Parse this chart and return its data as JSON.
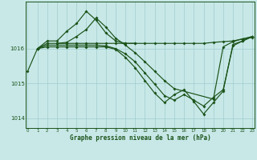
{
  "title": "Graphe pression niveau de la mer (hPa)",
  "bg_color": "#c8e8e8",
  "grid_color": "#a0cccc",
  "line_color": "#1a5218",
  "x_min": -0.2,
  "x_max": 23.2,
  "y_min": 1013.72,
  "y_max": 1017.35,
  "yticks": [
    1014,
    1015,
    1016
  ],
  "xticks": [
    0,
    1,
    2,
    3,
    4,
    5,
    6,
    7,
    8,
    9,
    10,
    11,
    12,
    13,
    14,
    15,
    16,
    17,
    18,
    19,
    20,
    21,
    22,
    23
  ],
  "series": [
    {
      "x": [
        0,
        1,
        2,
        3,
        4,
        5,
        6,
        7,
        8,
        9,
        10,
        11
      ],
      "y": [
        1015.35,
        1016.0,
        1016.22,
        1016.22,
        1016.5,
        1016.72,
        1017.07,
        1016.82,
        1016.45,
        1016.22,
        1016.15,
        1016.15
      ]
    },
    {
      "x": [
        3,
        4,
        5,
        6,
        7,
        8,
        9,
        10,
        11,
        12,
        13,
        14,
        15,
        16,
        17,
        18,
        19,
        20,
        21,
        22,
        23
      ],
      "y": [
        1016.15,
        1016.15,
        1016.15,
        1016.15,
        1016.15,
        1016.15,
        1016.15,
        1016.15,
        1016.15,
        1016.15,
        1016.15,
        1016.15,
        1016.15,
        1016.15,
        1016.15,
        1016.15,
        1016.18,
        1016.2,
        1016.22,
        1016.28,
        1016.32
      ]
    },
    {
      "x": [
        1,
        2,
        3,
        4,
        5,
        6,
        7,
        8,
        9,
        10,
        11,
        12,
        13,
        14,
        15,
        19,
        20,
        21,
        22,
        23
      ],
      "y": [
        1016.0,
        1016.15,
        1016.15,
        1016.18,
        1016.35,
        1016.55,
        1016.88,
        1016.62,
        1016.3,
        1016.1,
        1015.88,
        1015.62,
        1015.35,
        1015.08,
        1014.85,
        1014.55,
        1016.05,
        1016.2,
        1016.28,
        1016.35
      ]
    },
    {
      "x": [
        1,
        2,
        3,
        4,
        5,
        6,
        7,
        8,
        9,
        10,
        11,
        12,
        13,
        14,
        15,
        16,
        17,
        18,
        19,
        20,
        21,
        22,
        23
      ],
      "y": [
        1016.0,
        1016.1,
        1016.1,
        1016.1,
        1016.1,
        1016.1,
        1016.1,
        1016.08,
        1016.0,
        1015.85,
        1015.62,
        1015.3,
        1014.98,
        1014.65,
        1014.52,
        1014.68,
        1014.52,
        1014.35,
        1014.6,
        1014.82,
        1016.08,
        1016.22,
        1016.35
      ]
    },
    {
      "x": [
        1,
        2,
        3,
        4,
        5,
        6,
        7,
        8,
        9,
        10,
        11,
        12,
        13,
        14,
        15,
        16,
        17,
        18,
        19,
        20,
        21,
        22,
        23
      ],
      "y": [
        1016.0,
        1016.05,
        1016.05,
        1016.05,
        1016.05,
        1016.05,
        1016.05,
        1016.05,
        1015.98,
        1015.75,
        1015.45,
        1015.08,
        1014.72,
        1014.45,
        1014.68,
        1014.82,
        1014.48,
        1014.12,
        1014.45,
        1014.78,
        1016.12,
        1016.22,
        1016.35
      ]
    }
  ]
}
